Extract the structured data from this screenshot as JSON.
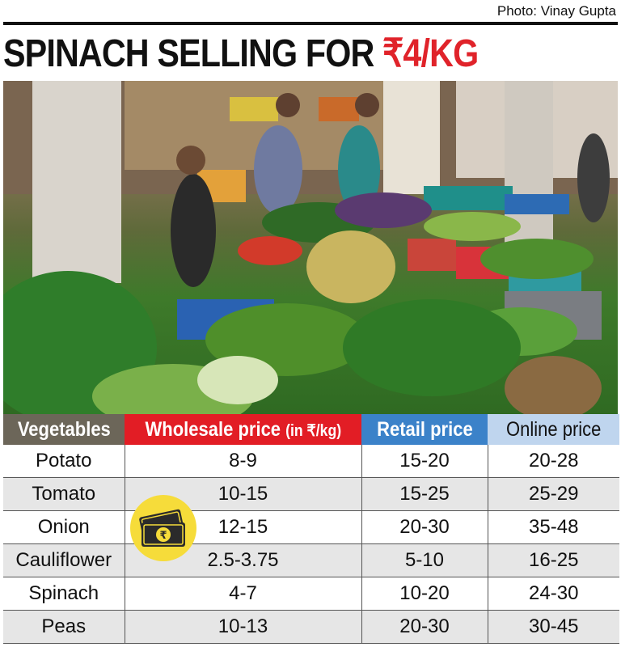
{
  "credit": "Photo: Vinay Gupta",
  "headline": {
    "main": "SPINACH SELLING FOR ",
    "accent": "₹4/KG"
  },
  "colors": {
    "accent": "#e21d25",
    "header_gray": "#6c6659",
    "header_blue": "#3b82c9",
    "header_light_blue": "#bfd5ee"
  },
  "icons": {
    "badge": "money-notes-icon"
  },
  "table": {
    "headers": {
      "vegetables": "Vegetables",
      "wholesale": "Wholesale price",
      "wholesale_unit": "(in ₹/kg)",
      "retail": "Retail price",
      "online": "Online price"
    },
    "rows": [
      {
        "name": "Potato",
        "wholesale": "8-9",
        "retail": "15-20",
        "online": "20-28"
      },
      {
        "name": "Tomato",
        "wholesale": "10-15",
        "retail": "15-25",
        "online": "25-29"
      },
      {
        "name": "Onion",
        "wholesale": "12-15",
        "retail": "20-30",
        "online": "35-48"
      },
      {
        "name": "Cauliflower",
        "wholesale": "2.5-3.75",
        "retail": "5-10",
        "online": "16-25"
      },
      {
        "name": "Spinach",
        "wholesale": "4-7",
        "retail": "10-20",
        "online": "24-30"
      },
      {
        "name": "Peas",
        "wholesale": "10-13",
        "retail": "20-30",
        "online": "30-45"
      }
    ]
  }
}
